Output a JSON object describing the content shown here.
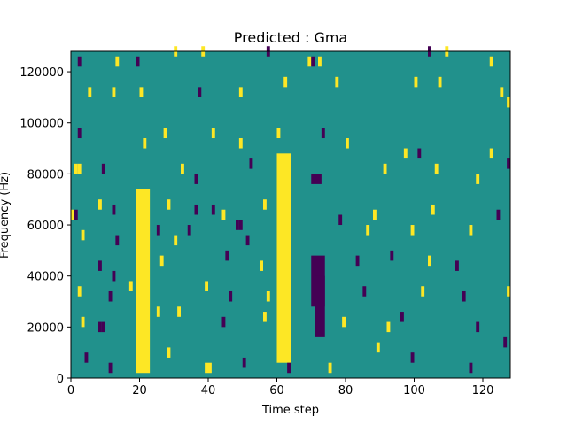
{
  "chart_data": {
    "type": "heatmap",
    "title": "Predicted : Gma",
    "xlabel": "Time step",
    "ylabel": "Frequency (Hz)",
    "xlim": [
      0,
      128
    ],
    "ylim": [
      0,
      128000
    ],
    "x_ticks": [
      0,
      20,
      40,
      60,
      80,
      100,
      120
    ],
    "y_ticks": [
      0,
      20000,
      40000,
      60000,
      80000,
      100000,
      120000
    ],
    "grid": false,
    "colormap": "viridis",
    "background_value": 0,
    "values": [
      -1,
      0,
      1
    ],
    "colors": {
      "background": "#21918c",
      "positive": "#fde725",
      "negative": "#440154"
    },
    "bins": {
      "time_steps": 128,
      "frequency_rows": 64,
      "row_height_hz": 2000
    },
    "bands": [
      {
        "value": 1,
        "x": [
          19,
          23
        ],
        "y": [
          2000,
          74000
        ]
      },
      {
        "value": 1,
        "x": [
          60,
          64
        ],
        "y": [
          6000,
          88000
        ]
      },
      {
        "value": -1,
        "x": [
          70,
          74
        ],
        "y": [
          28000,
          48000
        ]
      },
      {
        "value": -1,
        "x": [
          71,
          74
        ],
        "y": [
          16000,
          40000
        ]
      }
    ],
    "events": [
      {
        "value": -1,
        "x": 2,
        "y": 122000
      },
      {
        "value": 1,
        "x": 13,
        "y": 122000
      },
      {
        "value": -1,
        "x": 19,
        "y": 122000
      },
      {
        "value": 1,
        "x": 30,
        "y": 126000
      },
      {
        "value": 1,
        "x": 38,
        "y": 126000
      },
      {
        "value": -1,
        "x": 57,
        "y": 126000
      },
      {
        "value": 1,
        "x": 69,
        "y": 122000
      },
      {
        "value": -1,
        "x": 70,
        "y": 122000
      },
      {
        "value": 1,
        "x": 72,
        "y": 122000
      },
      {
        "value": -1,
        "x": 104,
        "y": 126000
      },
      {
        "value": 1,
        "x": 109,
        "y": 126000
      },
      {
        "value": 1,
        "x": 122,
        "y": 122000
      },
      {
        "value": 1,
        "x": 5,
        "y": 110000
      },
      {
        "value": 1,
        "x": 12,
        "y": 110000
      },
      {
        "value": 1,
        "x": 20,
        "y": 110000
      },
      {
        "value": -1,
        "x": 37,
        "y": 110000
      },
      {
        "value": 1,
        "x": 49,
        "y": 110000
      },
      {
        "value": 1,
        "x": 62,
        "y": 114000
      },
      {
        "value": 1,
        "x": 77,
        "y": 114000
      },
      {
        "value": 1,
        "x": 100,
        "y": 114000
      },
      {
        "value": 1,
        "x": 107,
        "y": 114000
      },
      {
        "value": 1,
        "x": 125,
        "y": 110000
      },
      {
        "value": 1,
        "x": 127,
        "y": 106000
      },
      {
        "value": -1,
        "x": 2,
        "y": 94000
      },
      {
        "value": 1,
        "x": 21,
        "y": 90000
      },
      {
        "value": 1,
        "x": 27,
        "y": 94000
      },
      {
        "value": 1,
        "x": 41,
        "y": 94000
      },
      {
        "value": 1,
        "x": 49,
        "y": 90000
      },
      {
        "value": 1,
        "x": 60,
        "y": 94000
      },
      {
        "value": -1,
        "x": 73,
        "y": 94000
      },
      {
        "value": 1,
        "x": 80,
        "y": 90000
      },
      {
        "value": 1,
        "x": 97,
        "y": 86000
      },
      {
        "value": -1,
        "x": 101,
        "y": 86000
      },
      {
        "value": 1,
        "x": 122,
        "y": 86000
      },
      {
        "value": -1,
        "x": 127,
        "y": 82000
      },
      {
        "value": 1,
        "x": 1,
        "y": 80000
      },
      {
        "value": 1,
        "x": 2,
        "y": 80000
      },
      {
        "value": -1,
        "x": 9,
        "y": 80000
      },
      {
        "value": 1,
        "x": 32,
        "y": 80000
      },
      {
        "value": -1,
        "x": 36,
        "y": 76000
      },
      {
        "value": -1,
        "x": 52,
        "y": 82000
      },
      {
        "value": -1,
        "x": 70,
        "y": 76000
      },
      {
        "value": -1,
        "x": 71,
        "y": 76000
      },
      {
        "value": -1,
        "x": 72,
        "y": 76000
      },
      {
        "value": 1,
        "x": 91,
        "y": 80000
      },
      {
        "value": 1,
        "x": 106,
        "y": 80000
      },
      {
        "value": 1,
        "x": 118,
        "y": 76000
      },
      {
        "value": -1,
        "x": 1,
        "y": 62000
      },
      {
        "value": 1,
        "x": 0,
        "y": 62000
      },
      {
        "value": 1,
        "x": 8,
        "y": 66000
      },
      {
        "value": -1,
        "x": 12,
        "y": 64000
      },
      {
        "value": 1,
        "x": 28,
        "y": 66000
      },
      {
        "value": -1,
        "x": 36,
        "y": 64000
      },
      {
        "value": -1,
        "x": 41,
        "y": 64000
      },
      {
        "value": 1,
        "x": 44,
        "y": 62000
      },
      {
        "value": -1,
        "x": 48,
        "y": 58000
      },
      {
        "value": -1,
        "x": 49,
        "y": 58000
      },
      {
        "value": 1,
        "x": 56,
        "y": 66000
      },
      {
        "value": -1,
        "x": 78,
        "y": 60000
      },
      {
        "value": 1,
        "x": 88,
        "y": 62000
      },
      {
        "value": 1,
        "x": 105,
        "y": 64000
      },
      {
        "value": -1,
        "x": 124,
        "y": 62000
      },
      {
        "value": 1,
        "x": 3,
        "y": 54000
      },
      {
        "value": -1,
        "x": 13,
        "y": 52000
      },
      {
        "value": -1,
        "x": 25,
        "y": 56000
      },
      {
        "value": 1,
        "x": 30,
        "y": 52000
      },
      {
        "value": -1,
        "x": 34,
        "y": 56000
      },
      {
        "value": -1,
        "x": 51,
        "y": 52000
      },
      {
        "value": 1,
        "x": 86,
        "y": 56000
      },
      {
        "value": 1,
        "x": 99,
        "y": 56000
      },
      {
        "value": 1,
        "x": 116,
        "y": 56000
      },
      {
        "value": -1,
        "x": 8,
        "y": 42000
      },
      {
        "value": -1,
        "x": 12,
        "y": 38000
      },
      {
        "value": 1,
        "x": 26,
        "y": 44000
      },
      {
        "value": -1,
        "x": 45,
        "y": 46000
      },
      {
        "value": 1,
        "x": 55,
        "y": 42000
      },
      {
        "value": -1,
        "x": 83,
        "y": 44000
      },
      {
        "value": -1,
        "x": 93,
        "y": 46000
      },
      {
        "value": 1,
        "x": 104,
        "y": 44000
      },
      {
        "value": -1,
        "x": 112,
        "y": 42000
      },
      {
        "value": 1,
        "x": 2,
        "y": 32000
      },
      {
        "value": -1,
        "x": 11,
        "y": 30000
      },
      {
        "value": 1,
        "x": 17,
        "y": 34000
      },
      {
        "value": 1,
        "x": 39,
        "y": 34000
      },
      {
        "value": -1,
        "x": 46,
        "y": 30000
      },
      {
        "value": 1,
        "x": 57,
        "y": 30000
      },
      {
        "value": -1,
        "x": 85,
        "y": 32000
      },
      {
        "value": 1,
        "x": 102,
        "y": 32000
      },
      {
        "value": -1,
        "x": 114,
        "y": 30000
      },
      {
        "value": 1,
        "x": 127,
        "y": 32000
      },
      {
        "value": 1,
        "x": 3,
        "y": 20000
      },
      {
        "value": -1,
        "x": 8,
        "y": 18000
      },
      {
        "value": -1,
        "x": 9,
        "y": 18000
      },
      {
        "value": 1,
        "x": 25,
        "y": 24000
      },
      {
        "value": 1,
        "x": 31,
        "y": 24000
      },
      {
        "value": -1,
        "x": 44,
        "y": 20000
      },
      {
        "value": 1,
        "x": 56,
        "y": 22000
      },
      {
        "value": 1,
        "x": 79,
        "y": 20000
      },
      {
        "value": 1,
        "x": 92,
        "y": 18000
      },
      {
        "value": -1,
        "x": 96,
        "y": 22000
      },
      {
        "value": -1,
        "x": 118,
        "y": 18000
      },
      {
        "value": -1,
        "x": 4,
        "y": 6000
      },
      {
        "value": -1,
        "x": 11,
        "y": 2000
      },
      {
        "value": 1,
        "x": 28,
        "y": 8000
      },
      {
        "value": 1,
        "x": 39,
        "y": 2000
      },
      {
        "value": 1,
        "x": 40,
        "y": 2000
      },
      {
        "value": -1,
        "x": 50,
        "y": 4000
      },
      {
        "value": -1,
        "x": 63,
        "y": 2000
      },
      {
        "value": 1,
        "x": 75,
        "y": 2000
      },
      {
        "value": 1,
        "x": 89,
        "y": 10000
      },
      {
        "value": -1,
        "x": 99,
        "y": 6000
      },
      {
        "value": -1,
        "x": 116,
        "y": 2000
      },
      {
        "value": -1,
        "x": 126,
        "y": 12000
      }
    ]
  }
}
